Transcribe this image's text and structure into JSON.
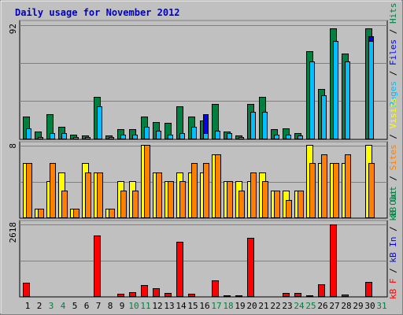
{
  "chart_data": [
    {
      "type": "bar",
      "title": "Daily usage for November 2012",
      "panel": "hits-files-pages",
      "ymax_label": "92",
      "ylim": [
        0,
        92
      ],
      "series": [
        {
          "name": "Hits",
          "color": "#008040",
          "values": [
            18,
            6,
            20,
            10,
            4,
            3,
            34,
            3,
            8,
            8,
            18,
            14,
            13,
            26,
            18,
            15,
            28,
            6,
            3,
            28,
            34,
            8,
            9,
            5,
            70,
            40,
            88,
            68,
            0,
            88,
            0
          ]
        },
        {
          "name": "Files",
          "color": "#0000FF",
          "values": [
            0,
            2,
            0,
            0,
            0,
            0,
            0,
            0,
            0,
            0,
            10,
            0,
            0,
            0,
            0,
            20,
            0,
            0,
            0,
            0,
            0,
            0,
            0,
            0,
            0,
            0,
            0,
            0,
            0,
            82,
            0
          ]
        },
        {
          "name": "Pages",
          "color": "#00C0FF",
          "values": [
            9,
            2,
            5,
            5,
            2,
            2,
            26,
            2,
            4,
            4,
            10,
            7,
            4,
            5,
            10,
            5,
            7,
            5,
            2,
            22,
            22,
            4,
            4,
            3,
            62,
            35,
            78,
            62,
            0,
            78,
            0
          ]
        }
      ],
      "legend_labels": [
        "Pages",
        "Files",
        "Hits"
      ]
    },
    {
      "type": "bar",
      "panel": "visits-sites",
      "ymax_label": "8",
      "ylim": [
        0,
        8
      ],
      "series": [
        {
          "name": "Visits",
          "color": "#FFFF00",
          "values": [
            6,
            1,
            4,
            5,
            1,
            6,
            5,
            1,
            4,
            4,
            8,
            5,
            4,
            5,
            5,
            5,
            7,
            4,
            4,
            4,
            5,
            3,
            3,
            3,
            8,
            6,
            6,
            6,
            0,
            8,
            0
          ]
        },
        {
          "name": "Sites",
          "color": "#FF8000",
          "values": [
            6,
            1,
            6,
            3,
            1,
            5,
            5,
            1,
            3,
            3,
            8,
            5,
            4,
            4,
            6,
            6,
            7,
            4,
            3,
            5,
            4,
            3,
            2,
            3,
            6,
            7,
            6,
            7,
            0,
            6,
            0
          ]
        }
      ],
      "legend_labels": [
        "Visits",
        "Sites",
        "kB Out"
      ]
    },
    {
      "type": "bar",
      "panel": "kbytes",
      "ymax_label": "2618",
      "ylim": [
        0,
        2618
      ],
      "series": [
        {
          "name": "kB F",
          "color": "#FF0000",
          "values": [
            520,
            20,
            20,
            20,
            20,
            20,
            2200,
            30,
            110,
            160,
            430,
            300,
            130,
            1980,
            110,
            40,
            580,
            60,
            60,
            2120,
            30,
            30,
            150,
            150,
            60,
            440,
            2600,
            90,
            30,
            540,
            0
          ]
        }
      ],
      "legend_labels": [
        "kB F",
        "kB In",
        "kB Out"
      ]
    }
  ],
  "x_labels": [
    "1",
    "2",
    "3",
    "4",
    "5",
    "6",
    "7",
    "8",
    "9",
    "10",
    "11",
    "12",
    "13",
    "14",
    "15",
    "16",
    "17",
    "18",
    "19",
    "20",
    "21",
    "22",
    "23",
    "24",
    "25",
    "26",
    "27",
    "28",
    "29",
    "30",
    "31"
  ],
  "weekend_days": [
    3,
    4,
    10,
    11,
    17,
    18,
    24,
    25,
    31
  ],
  "colors": {
    "title": "#0000C0",
    "weekend": "#008040",
    "weekday": "#000000",
    "panel_bg": "#C0C0C0",
    "grid": "#808080",
    "legend_sep": "#000000",
    "kb_in": "#0000FF",
    "kb_out": "#008040"
  }
}
